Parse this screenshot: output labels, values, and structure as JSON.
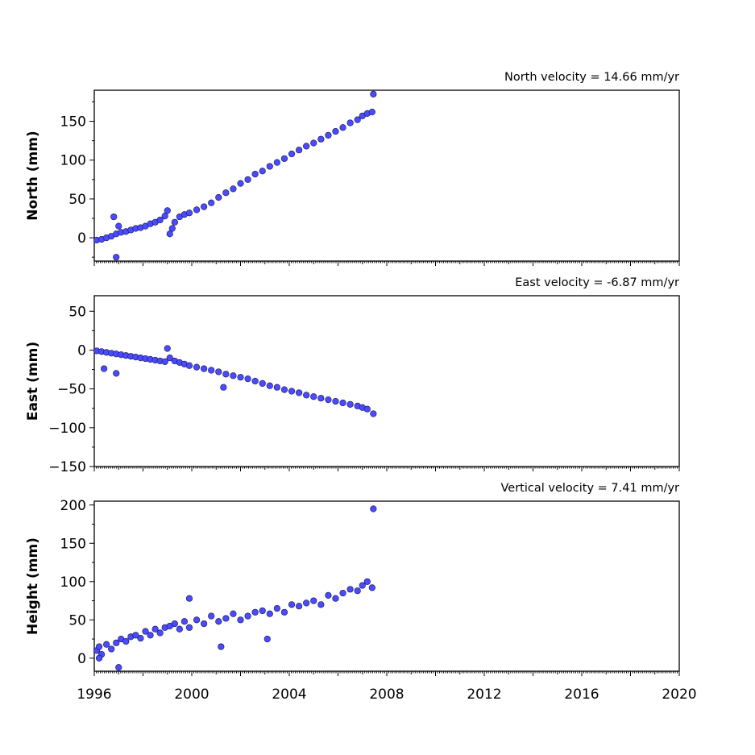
{
  "chart_data": [
    {
      "type": "scatter",
      "title": "North velocity = 14.66 mm/yr",
      "ylabel": "North (mm)",
      "xlim": [
        1996,
        2020
      ],
      "ylim": [
        -30,
        190
      ],
      "yticks": [
        0,
        50,
        100,
        150
      ],
      "xticks": [
        1996,
        2000,
        2004,
        2008,
        2012,
        2016,
        2020
      ],
      "marker_color": "#4a4aff",
      "series": [
        {
          "x": [
            1996.1,
            1996.3,
            1996.5,
            1996.7,
            1996.9,
            1997.1,
            1997.3,
            1997.5,
            1997.7,
            1997.9,
            1998.1,
            1998.3,
            1998.5,
            1998.7,
            1998.9,
            1999.0,
            1999.1,
            1999.2,
            1999.3,
            1999.5,
            1999.7,
            1999.9,
            2000.2,
            2000.5,
            2000.8,
            2001.1,
            2001.4,
            2001.7,
            2002.0,
            2002.3,
            2002.6,
            2002.9,
            2003.2,
            2003.5,
            2003.8,
            2004.1,
            2004.4,
            2004.7,
            2005.0,
            2005.3,
            2005.6,
            2005.9,
            2006.2,
            2006.5,
            2006.8,
            2007.0,
            2007.2,
            2007.4,
            2007.45,
            1996.8,
            1996.9,
            1997.0
          ],
          "y": [
            -3,
            -2,
            0,
            2,
            5,
            7,
            8,
            10,
            12,
            13,
            15,
            18,
            20,
            23,
            28,
            35,
            5,
            12,
            20,
            27,
            30,
            32,
            36,
            40,
            45,
            52,
            58,
            63,
            70,
            75,
            82,
            86,
            92,
            97,
            102,
            108,
            113,
            118,
            122,
            127,
            132,
            137,
            142,
            148,
            152,
            157,
            160,
            162,
            185,
            27,
            -25,
            15
          ]
        }
      ]
    },
    {
      "type": "scatter",
      "title": "East velocity = -6.87 mm/yr",
      "ylabel": "East (mm)",
      "xlim": [
        1996,
        2020
      ],
      "ylim": [
        -150,
        70
      ],
      "yticks": [
        -150,
        -100,
        -50,
        0,
        50
      ],
      "xticks": [
        1996,
        2000,
        2004,
        2008,
        2012,
        2016,
        2020
      ],
      "marker_color": "#4a4aff",
      "series": [
        {
          "x": [
            1996.1,
            1996.3,
            1996.5,
            1996.7,
            1996.9,
            1997.1,
            1997.3,
            1997.5,
            1997.7,
            1997.9,
            1998.1,
            1998.3,
            1998.5,
            1998.7,
            1998.9,
            1999.0,
            1999.1,
            1999.3,
            1999.5,
            1999.7,
            1999.9,
            2000.2,
            2000.5,
            2000.8,
            2001.1,
            2001.4,
            2001.7,
            2002.0,
            2002.3,
            2002.6,
            2002.9,
            2003.2,
            2003.5,
            2003.8,
            2004.1,
            2004.4,
            2004.7,
            2005.0,
            2005.3,
            2005.6,
            2005.9,
            2006.2,
            2006.5,
            2006.8,
            2007.0,
            2007.2,
            2007.45,
            1996.4,
            1996.9,
            2001.3
          ],
          "y": [
            -1,
            -2,
            -3,
            -4,
            -5,
            -6,
            -7,
            -8,
            -9,
            -10,
            -11,
            -12,
            -13,
            -14,
            -15,
            2,
            -10,
            -14,
            -16,
            -18,
            -20,
            -22,
            -24,
            -26,
            -28,
            -31,
            -33,
            -35,
            -37,
            -40,
            -43,
            -46,
            -48,
            -51,
            -53,
            -55,
            -58,
            -60,
            -62,
            -64,
            -66,
            -68,
            -70,
            -72,
            -74,
            -76,
            -82,
            -24,
            -30,
            -48
          ]
        }
      ]
    },
    {
      "type": "scatter",
      "title": "Vertical velocity = 7.41 mm/yr",
      "ylabel": "Height (mm)",
      "xlim": [
        1996,
        2020
      ],
      "ylim": [
        -17,
        205
      ],
      "yticks": [
        0,
        50,
        100,
        150,
        200
      ],
      "xticks": [
        1996,
        2000,
        2004,
        2008,
        2012,
        2016,
        2020
      ],
      "xticklabels": [
        "1996",
        "2000",
        "2004",
        "2008",
        "2012",
        "2016",
        "2020"
      ],
      "marker_color": "#4a4aff",
      "series": [
        {
          "x": [
            1996.1,
            1996.2,
            1996.3,
            1996.5,
            1996.7,
            1996.9,
            1997.1,
            1997.3,
            1997.5,
            1997.7,
            1997.9,
            1998.1,
            1998.3,
            1998.5,
            1998.7,
            1998.9,
            1999.1,
            1999.3,
            1999.5,
            1999.7,
            1999.9,
            2000.2,
            2000.5,
            2000.8,
            2001.1,
            2001.4,
            2001.7,
            2002.0,
            2002.3,
            2002.6,
            2002.9,
            2003.2,
            2003.5,
            2003.8,
            2004.1,
            2004.4,
            2004.7,
            2005.0,
            2005.3,
            2005.6,
            2005.9,
            2006.2,
            2006.5,
            2006.8,
            2007.0,
            2007.2,
            2007.4,
            2007.45,
            1996.2,
            1997.0,
            1999.9,
            2001.2,
            2003.1
          ],
          "y": [
            10,
            15,
            5,
            18,
            12,
            20,
            25,
            22,
            28,
            30,
            26,
            35,
            30,
            38,
            33,
            40,
            42,
            45,
            38,
            48,
            40,
            50,
            45,
            55,
            48,
            52,
            58,
            50,
            55,
            60,
            62,
            58,
            65,
            60,
            70,
            68,
            72,
            75,
            70,
            82,
            78,
            85,
            90,
            88,
            95,
            100,
            92,
            195,
            0,
            -12,
            78,
            15,
            25
          ]
        }
      ]
    }
  ]
}
